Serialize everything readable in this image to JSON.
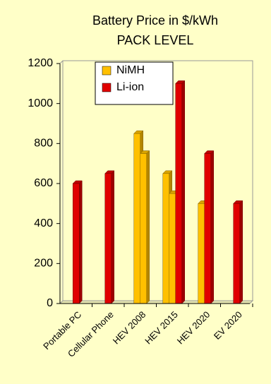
{
  "chart_data": {
    "type": "bar3d",
    "title": "Battery Price in $/kWh",
    "subtitle": "PACK LEVEL",
    "categories": [
      "Portable PC",
      "Cellular Phone",
      "HEV 2008",
      "HEV 2015",
      "HEV 2020",
      "EV 2020"
    ],
    "series": [
      {
        "name": "NiMH",
        "color": "#ffc000",
        "values": [
          null,
          null,
          850,
          650,
          500,
          null
        ]
      },
      {
        "color": "#ffc000",
        "values": [
          null,
          null,
          750,
          550,
          null,
          null
        ]
      },
      {
        "name": "Li-ion",
        "color": "#e00000",
        "values": [
          600,
          650,
          null,
          1100,
          750,
          500
        ]
      }
    ],
    "ylim": [
      0,
      1200
    ],
    "yticks": [
      0,
      200,
      400,
      600,
      800,
      1000,
      1200
    ],
    "grid": false,
    "legend": "upper left"
  }
}
